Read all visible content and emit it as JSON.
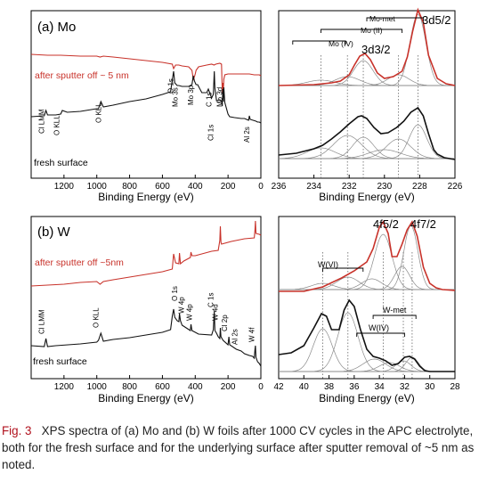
{
  "chart_data": [
    {
      "id": "mo_survey",
      "type": "line",
      "panel_label": "(a) Mo",
      "xlabel": "Binding Energy (eV)",
      "xlim": [
        1400,
        0
      ],
      "xticks": [
        1200,
        1000,
        800,
        600,
        400,
        200,
        0
      ],
      "series": [
        {
          "name": "after sputter off ~ 5 nm",
          "color": "#c8322a",
          "x": [
            1400,
            1300,
            1220,
            1100,
            1000,
            980,
            960,
            900,
            800,
            700,
            600,
            540,
            532,
            520,
            500,
            480,
            440,
            420,
            412,
            405,
            400,
            395,
            380,
            330,
            300,
            285,
            275,
            250,
            240,
            235,
            232,
            229,
            226,
            220,
            200,
            150,
            120,
            100,
            70,
            40,
            20,
            10,
            0
          ],
          "y": [
            61,
            62,
            62,
            63,
            63,
            64,
            63,
            64,
            66,
            68,
            70,
            72,
            77,
            73,
            73,
            74,
            75,
            79,
            89,
            86,
            83,
            79,
            75,
            73,
            72,
            73,
            72,
            71,
            72,
            104,
            93,
            104,
            89,
            84,
            83,
            83,
            83,
            83,
            83,
            84,
            84,
            84,
            85
          ]
        },
        {
          "name": "fresh surface",
          "color": "#111111",
          "x": [
            1400,
            1320,
            1310,
            1300,
            1250,
            1220,
            1210,
            1180,
            1100,
            1000,
            990,
            975,
            960,
            900,
            800,
            700,
            600,
            550,
            540,
            532,
            525,
            510,
            500,
            480,
            440,
            420,
            412,
            405,
            395,
            385,
            360,
            330,
            320,
            300,
            290,
            284,
            280,
            270,
            250,
            240,
            235,
            232,
            229,
            226,
            220,
            200,
            190,
            160,
            120,
            100,
            75,
            70,
            65,
            30,
            20,
            10,
            0
          ],
          "y": [
            131,
            130,
            124,
            129,
            129,
            128,
            124,
            126,
            125,
            122,
            122,
            114,
            120,
            118,
            114,
            111,
            106,
            103,
            90,
            80,
            93,
            96,
            96,
            97,
            97,
            95,
            85,
            91,
            95,
            95,
            104,
            104,
            100,
            110,
            106,
            80,
            99,
            113,
            112,
            114,
            119,
            100,
            114,
            98,
            115,
            128,
            131,
            132,
            133,
            133,
            135,
            130,
            134,
            136,
            137,
            137,
            138
          ]
        }
      ],
      "annotations": [
        "Cl LMM",
        "O KLL",
        "O KLL",
        "O 1s",
        "Mo 3s",
        "Mo 3p",
        "C 1s",
        "Mo 3d",
        "Cl 1s",
        "Al 2s"
      ]
    },
    {
      "id": "mo_3d",
      "type": "line",
      "xlabel": "Binding Energy (eV)",
      "xlim": [
        236,
        226
      ],
      "xticks": [
        236,
        234,
        232,
        230,
        228,
        226
      ],
      "labels": {
        "doublet_32": "3d3/2",
        "doublet_52": "3d5/2",
        "states": [
          "Mo-met",
          "Mo (II)",
          "Mo (IV)"
        ]
      },
      "dashed_lines_x": [
        233.6,
        232.1,
        231.2,
        229.2,
        228.1
      ],
      "top_envelope": {
        "x": [
          236,
          234,
          233,
          232.5,
          232,
          231.7,
          231.4,
          231.1,
          230.8,
          230.4,
          230,
          229.5,
          229,
          228.7,
          228.4,
          228.1,
          227.8,
          227.5,
          227,
          226.5,
          226
        ],
        "y": [
          96,
          95,
          93,
          91,
          84,
          73,
          63,
          60,
          67,
          82,
          88,
          86,
          80,
          64,
          35,
          11,
          25,
          62,
          88,
          94,
          96
        ]
      },
      "bottom_envelope": {
        "x": [
          236,
          235,
          234,
          233.5,
          233,
          232.5,
          232,
          231.5,
          231.3,
          231,
          230.6,
          230.2,
          229.8,
          229.3,
          228.9,
          228.5,
          228.1,
          227.8,
          227.5,
          227.2,
          227,
          226.6,
          226
        ],
        "y": [
          174,
          172,
          167,
          163,
          156,
          148,
          139,
          131,
          130,
          133,
          143,
          150,
          149,
          143,
          136,
          126,
          121,
          130,
          150,
          168,
          173,
          177,
          179
        ]
      }
    },
    {
      "id": "w_survey",
      "type": "line",
      "panel_label": "(b) W",
      "xlabel": "Binding Energy (eV)",
      "xlim": [
        1400,
        0
      ],
      "xticks": [
        1200,
        1000,
        800,
        600,
        400,
        200,
        0
      ],
      "series": [
        {
          "name": "after sputter off ~5nm",
          "color": "#c8322a",
          "x": [
            1400,
            1300,
            1200,
            1100,
            1000,
            980,
            960,
            900,
            800,
            700,
            600,
            540,
            532,
            520,
            500,
            496,
            490,
            470,
            430,
            426,
            420,
            400,
            300,
            260,
            250,
            247,
            243,
            240,
            180,
            100,
            40,
            36,
            33,
            30,
            10,
            0
          ],
          "y": [
            321,
            320,
            319,
            317,
            316,
            319,
            316,
            314,
            311,
            308,
            305,
            302,
            285,
            295,
            296,
            284,
            296,
            293,
            289,
            283,
            287,
            287,
            282,
            281,
            270,
            254,
            272,
            274,
            271,
            268,
            267,
            258,
            248,
            262,
            263,
            264
          ]
        },
        {
          "name": "fresh surface",
          "color": "#111111",
          "x": [
            1400,
            1320,
            1310,
            1300,
            1250,
            1100,
            1000,
            990,
            975,
            960,
            900,
            800,
            700,
            600,
            550,
            540,
            532,
            525,
            510,
            500,
            496,
            490,
            480,
            430,
            426,
            420,
            380,
            300,
            290,
            284,
            280,
            270,
            260,
            250,
            247,
            243,
            230,
            200,
            195,
            190,
            150,
            120,
            100,
            70,
            50,
            40,
            36,
            33,
            30,
            20,
            10,
            0
          ],
          "y": [
            388,
            389,
            380,
            389,
            388,
            386,
            384,
            382,
            374,
            383,
            381,
            379,
            376,
            373,
            370,
            355,
            347,
            356,
            360,
            361,
            352,
            360,
            365,
            371,
            364,
            371,
            375,
            376,
            370,
            349,
            371,
            374,
            378,
            380,
            368,
            378,
            382,
            387,
            378,
            387,
            392,
            394,
            397,
            399,
            400,
            402,
            392,
            388,
            401,
            406,
            408,
            411
          ]
        }
      ],
      "annotations": [
        "Cl LMM",
        "O KLL",
        "O 1s",
        "W 4p",
        "W 4p",
        "C 1s",
        "W 4d",
        "Cl 2p",
        "Al 2s",
        "W 4f"
      ]
    },
    {
      "id": "w_4f",
      "type": "line",
      "xlabel": "Binding Energy (eV)",
      "xlim": [
        42,
        28
      ],
      "xticks": [
        42,
        40,
        38,
        36,
        34,
        32,
        30,
        28
      ],
      "labels": {
        "doublet_52": "4f5/2",
        "doublet_72": "4f7/2",
        "states": [
          "W(VI)",
          "W-met",
          "W(IV)"
        ]
      },
      "dashed_lines_x": [
        38.5,
        36.5,
        33.7,
        32.1,
        31.4
      ],
      "top_envelope": {
        "x": [
          42,
          40,
          38.5,
          37,
          36,
          35.5,
          35,
          34.5,
          34,
          33.7,
          33.3,
          33,
          32.6,
          32.2,
          31.8,
          31.4,
          31,
          30.5,
          30,
          29.5,
          29,
          28
        ],
        "y": [
          327,
          327,
          322,
          312,
          304,
          299,
          294,
          279,
          255,
          249,
          262,
          288,
          288,
          274,
          258,
          249,
          265,
          300,
          318,
          323,
          325,
          326
        ]
      },
      "bottom_envelope": {
        "x": [
          42,
          41,
          40,
          39.2,
          38.6,
          38.2,
          37.8,
          37.2,
          36.8,
          36.4,
          36,
          35.5,
          35,
          34.5,
          34,
          33.5,
          33,
          32.5,
          32,
          31.6,
          31.2,
          30.8,
          30.4,
          30,
          29.5,
          29,
          28
        ],
        "y": [
          398,
          396,
          388,
          368,
          352,
          355,
          370,
          370,
          348,
          337,
          344,
          370,
          392,
          400,
          402,
          405,
          410,
          408,
          401,
          400,
          403,
          411,
          416,
          417,
          417,
          417,
          417
        ]
      }
    }
  ],
  "caption": {
    "label": "Fig. 3",
    "text": "XPS spectra of (a) Mo and (b) W foils after 1000 CV cycles in the APC electrolyte, both for the fresh surface and for the underlying surface after sputter removal of ~5 nm as noted."
  }
}
